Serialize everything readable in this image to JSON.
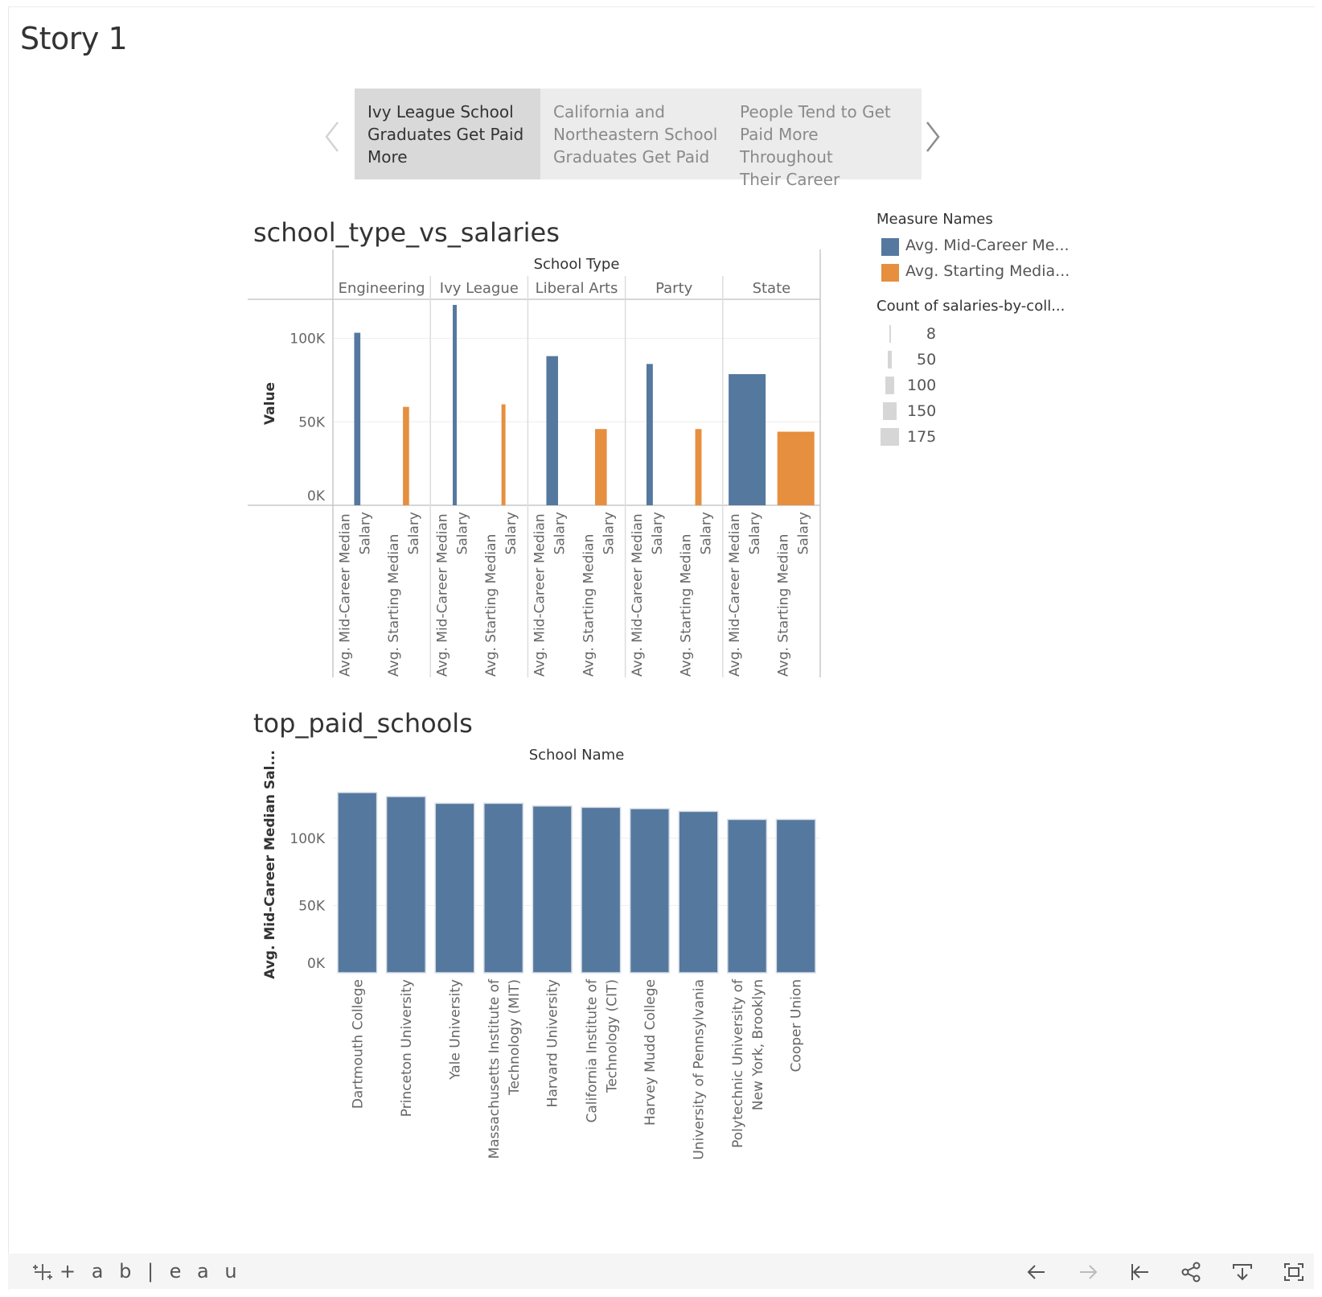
{
  "story": {
    "title": "Story 1"
  },
  "tabs": [
    {
      "label_lines": [
        "Ivy League School",
        "Graduates Get Paid",
        "More"
      ],
      "active": true
    },
    {
      "label_lines": [
        "California and",
        "Northeastern School",
        "Graduates Get Paid"
      ],
      "active": false
    },
    {
      "label_lines": [
        "People Tend to Get",
        "Paid More Throughout",
        "Their Career"
      ],
      "active": false
    }
  ],
  "legend": {
    "color_title": "Measure Names",
    "color_items": [
      {
        "label": "Avg. Mid-Career Me...",
        "color": "#55789f"
      },
      {
        "label": "Avg. Starting Media...",
        "color": "#e68f3f"
      }
    ],
    "size_title": "Count of salaries-by-coll...",
    "size_items": [
      "8",
      "50",
      "100",
      "150",
      "175"
    ]
  },
  "chart_data": [
    {
      "type": "bar",
      "title": "school_type_vs_salaries",
      "column_header": "School Type",
      "categories": [
        "Engineering",
        "Ivy League",
        "Liberal Arts",
        "Party",
        "State"
      ],
      "measures": [
        "Avg. Mid-Career Median Salary",
        "Avg. Starting Median Salary"
      ],
      "measure_label_lines": [
        [
          "Avg. Mid-Career Median",
          "Salary"
        ],
        [
          "Avg. Starting Median",
          "Salary"
        ]
      ],
      "series": [
        {
          "name": "Avg. Mid-Career Median Salary",
          "values": [
            103400,
            120100,
            89400,
            84700,
            78600
          ],
          "color": "#55789f"
        },
        {
          "name": "Avg. Starting Median Salary",
          "values": [
            59000,
            60500,
            45700,
            45700,
            44100
          ],
          "color": "#e68f3f"
        }
      ],
      "counts": [
        19,
        8,
        47,
        20,
        175
      ],
      "ylabel": "Value",
      "yticks": [
        "0K",
        "50K",
        "100K"
      ],
      "ylim": [
        0,
        122000
      ]
    },
    {
      "type": "bar",
      "title": "top_paid_schools",
      "column_header": "School Name",
      "ylabel": "Avg. Mid-Career Median Sal...",
      "categories": [
        [
          "Dartmouth College"
        ],
        [
          "Princeton University"
        ],
        [
          "Yale University"
        ],
        [
          "Massachusetts Institute of",
          "Technology (MIT)"
        ],
        [
          "Harvard University"
        ],
        [
          "California Institute of",
          "Technology (CIT)"
        ],
        [
          "Harvey Mudd College"
        ],
        [
          "University of Pennsylvania"
        ],
        [
          "Polytechnic University of",
          "New York, Brooklyn"
        ],
        [
          "Cooper Union"
        ]
      ],
      "values": [
        134000,
        131000,
        126000,
        126000,
        124000,
        123000,
        122000,
        120000,
        114000,
        114000
      ],
      "color": "#55789f",
      "yticks": [
        "0K",
        "50K",
        "100K"
      ],
      "ylim": [
        0,
        137000
      ]
    }
  ],
  "footer": {
    "logo": "+ a b | e a u",
    "icons": [
      "undo-icon",
      "redo-icon",
      "revert-icon",
      "share-icon",
      "download-icon",
      "fullscreen-icon"
    ]
  }
}
